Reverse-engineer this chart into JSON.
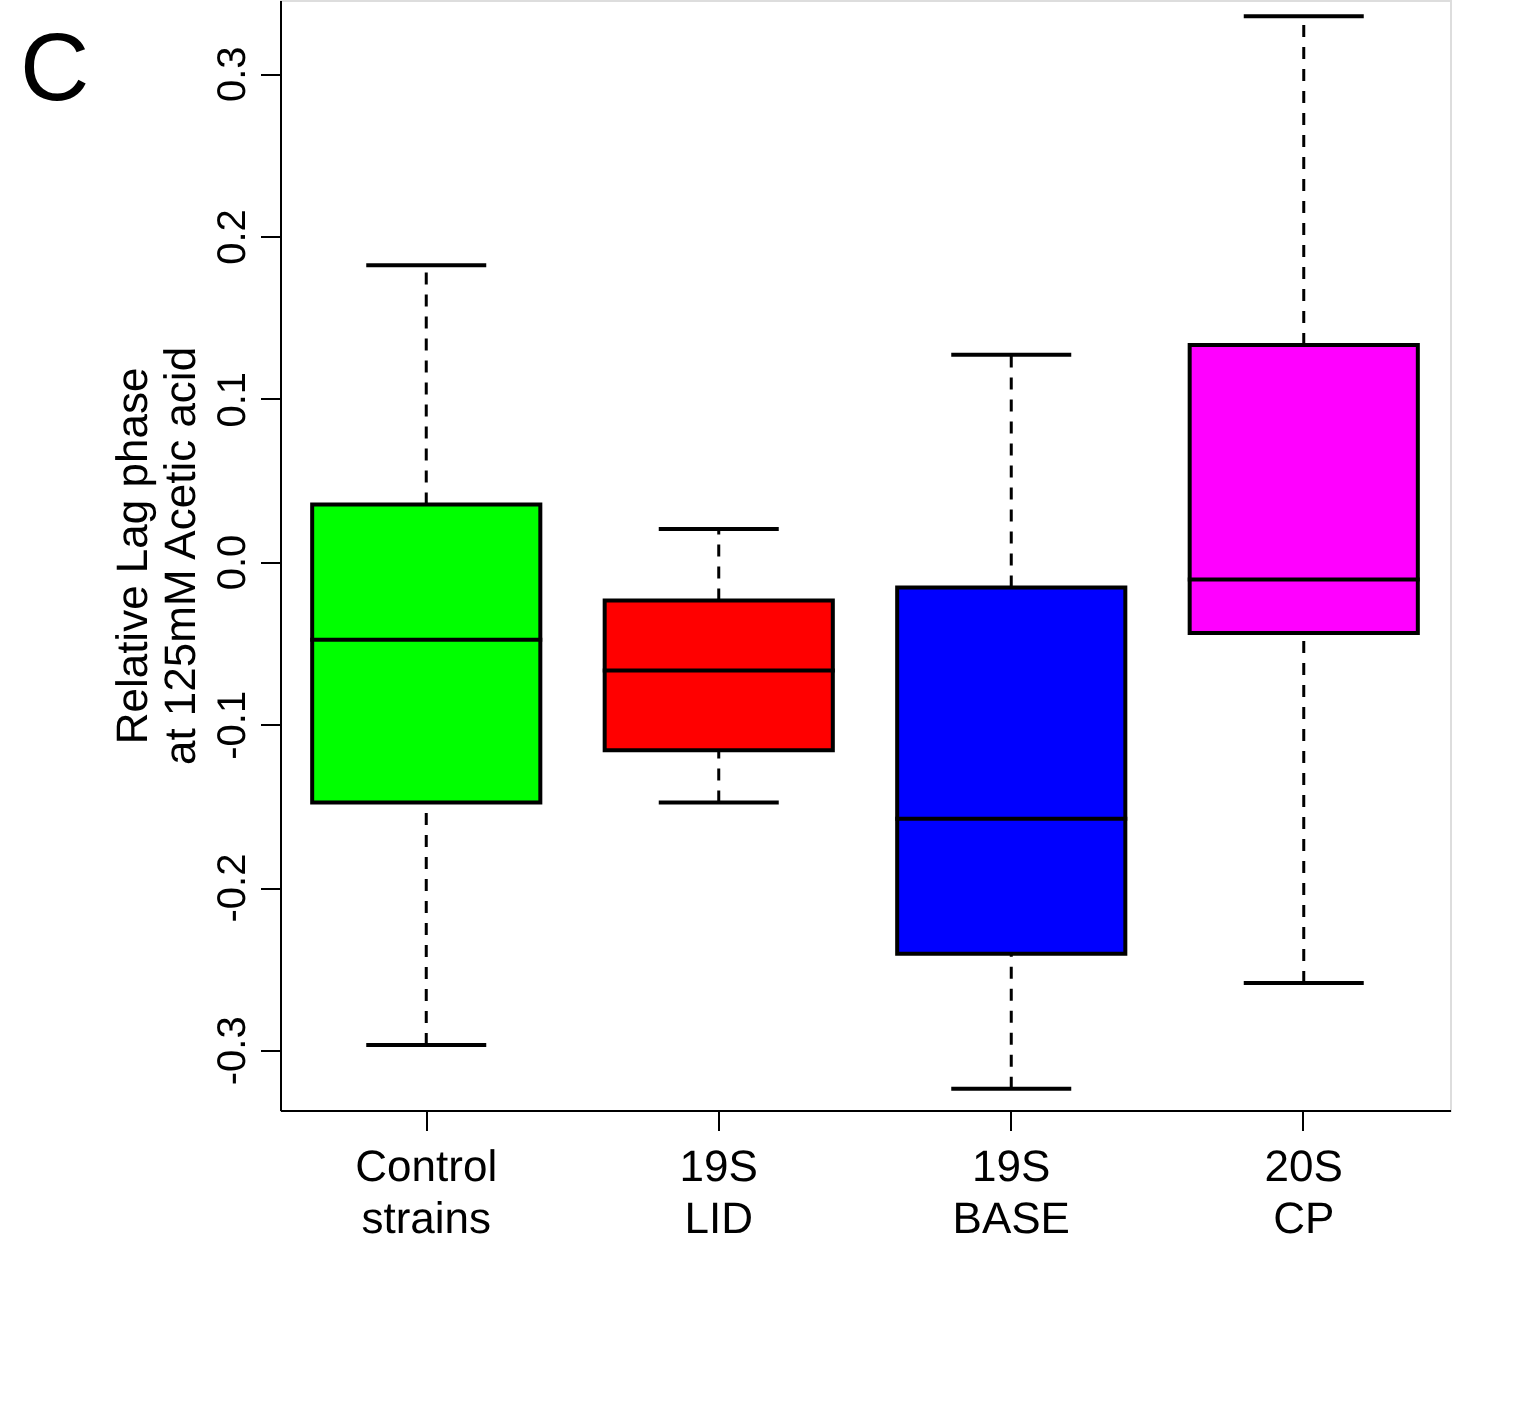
{
  "chart_data": {
    "type": "box",
    "title": "C",
    "ylabel": "Relative Lag phase\nat 125mM Acetic acid",
    "categories": [
      "Control\nstrains",
      "19S\nLID",
      "19S\nBASE",
      "20S\nCP"
    ],
    "colors": [
      "#00ff00",
      "#ff0000",
      "#0000ff",
      "#ff00ff"
    ],
    "boxes": [
      {
        "low": -0.297,
        "q1": -0.148,
        "median": -0.048,
        "q3": 0.035,
        "high": 0.182
      },
      {
        "low": -0.148,
        "q1": -0.116,
        "median": -0.067,
        "q3": -0.024,
        "high": 0.02
      },
      {
        "low": -0.324,
        "q1": -0.241,
        "median": -0.158,
        "q3": -0.016,
        "high": 0.127
      },
      {
        "low": -0.259,
        "q1": -0.044,
        "median": -0.011,
        "q3": 0.133,
        "high": 0.335
      }
    ],
    "ylim": [
      -0.337,
      0.345
    ],
    "yticks": [
      -0.3,
      -0.2,
      -0.1,
      {
        "value": 0,
        "label": "0.0"
      },
      0.1,
      0.2,
      0.3
    ],
    "grid": false,
    "legend": false
  }
}
